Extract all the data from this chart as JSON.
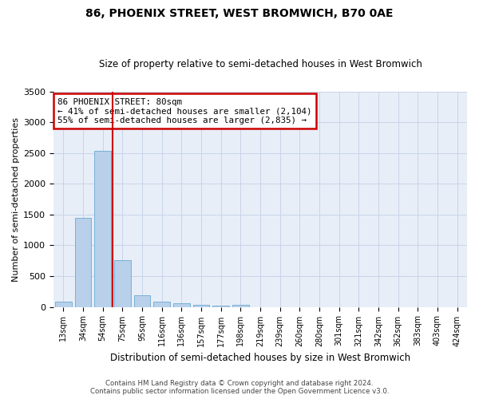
{
  "title": "86, PHOENIX STREET, WEST BROMWICH, B70 0AE",
  "subtitle": "Size of property relative to semi-detached houses in West Bromwich",
  "xlabel": "Distribution of semi-detached houses by size in West Bromwich",
  "ylabel": "Number of semi-detached properties",
  "footer_line1": "Contains HM Land Registry data © Crown copyright and database right 2024.",
  "footer_line2": "Contains public sector information licensed under the Open Government Licence v3.0.",
  "categories": [
    "13sqm",
    "34sqm",
    "54sqm",
    "75sqm",
    "95sqm",
    "116sqm",
    "136sqm",
    "157sqm",
    "177sqm",
    "198sqm",
    "219sqm",
    "239sqm",
    "260sqm",
    "280sqm",
    "301sqm",
    "321sqm",
    "342sqm",
    "362sqm",
    "383sqm",
    "403sqm",
    "424sqm"
  ],
  "values": [
    85,
    1440,
    2530,
    755,
    195,
    80,
    60,
    35,
    20,
    30,
    0,
    0,
    0,
    0,
    0,
    0,
    0,
    0,
    0,
    0,
    0
  ],
  "bar_color": "#b8d0ea",
  "bar_edge_color": "#6aaad4",
  "annotation_title": "86 PHOENIX STREET: 80sqm",
  "annotation_line1": "← 41% of semi-detached houses are smaller (2,104)",
  "annotation_line2": "55% of semi-detached houses are larger (2,835) →",
  "annotation_box_color": "#ffffff",
  "annotation_border_color": "#cc0000",
  "redline_color": "#cc0000",
  "redline_index": 2.5,
  "ylim": [
    0,
    3500
  ],
  "yticks": [
    0,
    500,
    1000,
    1500,
    2000,
    2500,
    3000,
    3500
  ],
  "grid_color": "#c8d4e8",
  "axes_bg_color": "#e8eef8",
  "fig_bg_color": "#ffffff"
}
